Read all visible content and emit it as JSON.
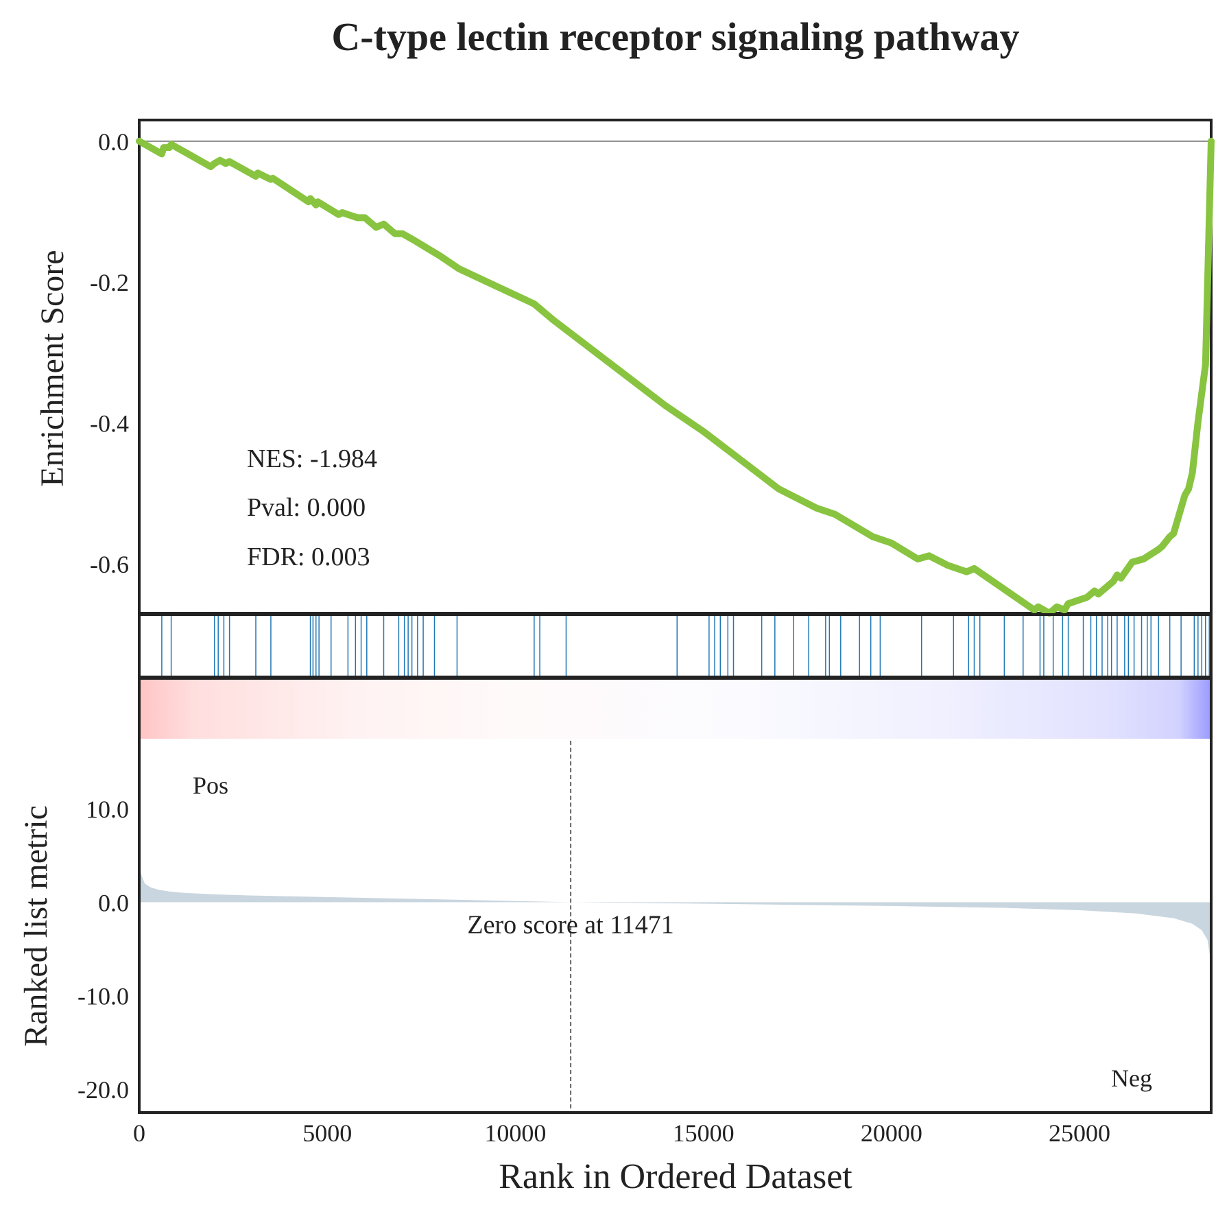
{
  "chart_data": {
    "type": "line",
    "title": "C-type lectin receptor signaling pathway",
    "xlabel": "Rank in Ordered Dataset",
    "xlim": [
      0,
      28500
    ],
    "xticks": [
      0,
      5000,
      10000,
      15000,
      20000,
      25000
    ],
    "es_panel": {
      "ylabel": "Enrichment Score",
      "ylim": [
        -0.67,
        0.03
      ],
      "yticks": [
        0.0,
        -0.2,
        -0.4,
        -0.6
      ],
      "ytick_labels": [
        "0.0",
        "-0.2",
        "-0.4",
        "-0.6"
      ],
      "line_color": "#88c440",
      "baseline": 0.0,
      "stats": [
        "NES: -1.984",
        "Pval: 0.000",
        "FDR: 0.003"
      ],
      "running_es": {
        "x": [
          0,
          300,
          600,
          650,
          800,
          850,
          1300,
          1900,
          2000,
          2150,
          2300,
          2400,
          3100,
          3150,
          3500,
          3550,
          4500,
          4550,
          4700,
          4750,
          5300,
          5400,
          5800,
          6000,
          6300,
          6500,
          6800,
          7000,
          7300,
          8000,
          8500,
          10500,
          11000,
          14000,
          15000,
          16000,
          17000,
          18000,
          18500,
          19500,
          20000,
          20700,
          21000,
          21500,
          22000,
          22200,
          23800,
          23900,
          24200,
          24400,
          24600,
          24700,
          25200,
          25400,
          25500,
          25700,
          25900,
          26000,
          26100,
          26400,
          26700,
          27100,
          27200,
          27400,
          27500,
          27800,
          27900,
          28000,
          28150,
          28350,
          28500
        ],
        "y": [
          0.0,
          -0.01,
          -0.02,
          -0.01,
          -0.01,
          -0.005,
          -0.02,
          -0.04,
          -0.035,
          -0.03,
          -0.035,
          -0.032,
          -0.055,
          -0.05,
          -0.06,
          -0.058,
          -0.095,
          -0.09,
          -0.1,
          -0.095,
          -0.115,
          -0.112,
          -0.12,
          -0.12,
          -0.135,
          -0.13,
          -0.145,
          -0.145,
          -0.155,
          -0.18,
          -0.2,
          -0.255,
          -0.28,
          -0.415,
          -0.455,
          -0.5,
          -0.545,
          -0.575,
          -0.585,
          -0.62,
          -0.63,
          -0.655,
          -0.65,
          -0.665,
          -0.675,
          -0.67,
          -0.735,
          -0.73,
          -0.74,
          -0.73,
          -0.735,
          -0.725,
          -0.715,
          -0.705,
          -0.71,
          -0.7,
          -0.69,
          -0.68,
          -0.685,
          -0.66,
          -0.655,
          -0.64,
          -0.635,
          -0.62,
          -0.615,
          -0.555,
          -0.545,
          -0.52,
          -0.44,
          -0.35,
          0.0
        ]
      },
      "note_y_scale": "display"
    },
    "hits_panel": {
      "color": "#1f77b4",
      "positions": [
        600,
        850,
        2000,
        2100,
        2250,
        2400,
        3100,
        3500,
        4550,
        4620,
        4700,
        4780,
        5100,
        5550,
        5750,
        5900,
        6050,
        6500,
        6900,
        7050,
        7150,
        7250,
        7400,
        7550,
        7850,
        8450,
        10500,
        10650,
        11350,
        14300,
        15150,
        15300,
        15450,
        15650,
        15800,
        16550,
        16900,
        17400,
        17800,
        18250,
        18350,
        18650,
        19150,
        19450,
        19700,
        20800,
        21650,
        22050,
        22200,
        22350,
        23000,
        23500,
        23950,
        24050,
        24300,
        24550,
        24700,
        25100,
        25300,
        25450,
        25600,
        25750,
        25850,
        26000,
        26200,
        26300,
        26450,
        26650,
        26800,
        26900,
        27100,
        27400,
        27700,
        28050,
        28150,
        28250,
        28350,
        28450
      ]
    },
    "ranked_metric_panel": {
      "ylabel": "Ranked list metric",
      "ylim": [
        -22.5,
        17.5
      ],
      "yticks": [
        10.0,
        0.0,
        -10.0,
        -20.0
      ],
      "ytick_labels": [
        "10.0",
        "0.0",
        "-10.0",
        "-20.0"
      ],
      "fill_color": "#c9d6df",
      "pos_label": "Pos",
      "pos_color": "#ff0000",
      "neg_label": "Neg",
      "neg_color": "#0000ff",
      "zero_cross_rank": 11471,
      "zero_cross_label": "Zero score at 11471",
      "metric": {
        "x": [
          0,
          50,
          150,
          300,
          500,
          800,
          1200,
          2000,
          3000,
          5000,
          8000,
          11471,
          15000,
          20000,
          23000,
          25000,
          26500,
          27500,
          28000,
          28250,
          28400,
          28480,
          28500
        ],
        "y": [
          4.0,
          3.0,
          2.0,
          1.6,
          1.35,
          1.15,
          1.0,
          0.85,
          0.72,
          0.55,
          0.3,
          0.0,
          -0.15,
          -0.4,
          -0.6,
          -0.85,
          -1.2,
          -1.7,
          -2.3,
          -3.0,
          -4.0,
          -6.0,
          -8.0
        ]
      }
    }
  }
}
